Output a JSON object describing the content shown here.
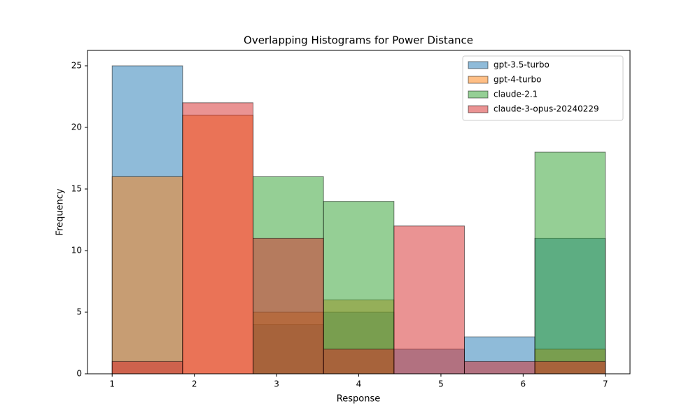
{
  "chart_data": {
    "type": "histogram",
    "title": "Overlapping Histograms for Power Distance",
    "x_label": "Response",
    "y_label": "Frequency",
    "bins": [
      1,
      1.8571,
      2.7143,
      3.5714,
      4.4286,
      5.2857,
      6.1429,
      7
    ],
    "series": [
      {
        "name": "gpt-3.5-turbo",
        "color": "#1f77b4",
        "values": [
          25,
          0,
          4,
          5,
          2,
          3,
          11
        ]
      },
      {
        "name": "gpt-4-turbo",
        "color": "#ff7f0e",
        "values": [
          16,
          21,
          5,
          6,
          0,
          0,
          2
        ]
      },
      {
        "name": "claude-2.1",
        "color": "#2ca02c",
        "values": [
          0,
          0,
          16,
          14,
          0,
          0,
          18
        ]
      },
      {
        "name": "claude-3-opus-20240229",
        "color": "#d62728",
        "values": [
          1,
          22,
          11,
          2,
          12,
          1,
          1
        ]
      }
    ],
    "opacity": 0.5,
    "xlim": [
      0.7,
      7.3
    ],
    "xticks": [
      1,
      2,
      3,
      4,
      5,
      6,
      7
    ],
    "ylim": [
      0,
      26.25
    ],
    "yticks": [
      0,
      5,
      10,
      15,
      20,
      25
    ],
    "legend": "upper right"
  }
}
